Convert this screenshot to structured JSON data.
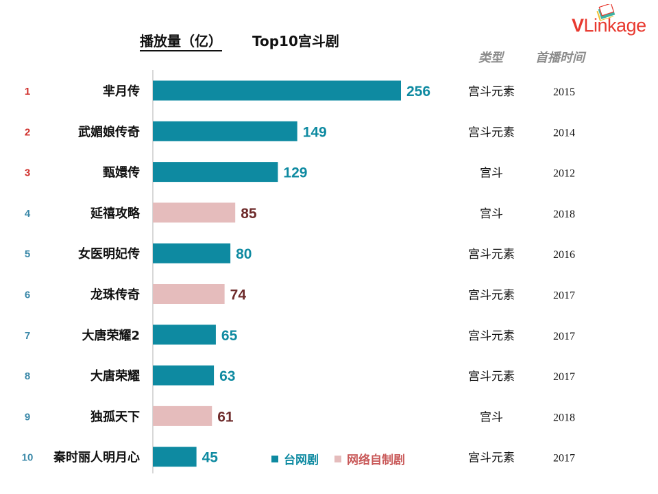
{
  "title": {
    "metric": "播放量（亿）",
    "name": "Top10宫斗剧"
  },
  "logo": {
    "brand_v": "V",
    "brand_rest": "Linkage"
  },
  "columns": {
    "type": "类型",
    "year": "首播时间"
  },
  "colors": {
    "tv": "#0e8aa1",
    "web": "#e5bcbc",
    "tv_label": "#0e8aa1",
    "web_label": "#6e2b2b",
    "rank_top": "#d0302c",
    "rank_other": "#3a88a8",
    "axis": "#bdbdbd"
  },
  "legend": {
    "tv": "台网剧",
    "web": "网络自制剧"
  },
  "chart_data": {
    "type": "bar",
    "orientation": "horizontal",
    "title": "播放量（亿） Top10宫斗剧",
    "xlim": [
      0,
      256
    ],
    "rows": [
      {
        "rank": "1",
        "name": "芈月传",
        "value": 256,
        "category": "tv",
        "type": "宫斗元素",
        "year": "2015"
      },
      {
        "rank": "2",
        "name": "武媚娘传奇",
        "value": 149,
        "category": "tv",
        "type": "宫斗元素",
        "year": "2014"
      },
      {
        "rank": "3",
        "name": "甄嬛传",
        "value": 129,
        "category": "tv",
        "type": "宫斗",
        "year": "2012"
      },
      {
        "rank": "4",
        "name": "延禧攻略",
        "value": 85,
        "category": "web",
        "type": "宫斗",
        "year": "2018"
      },
      {
        "rank": "5",
        "name": "女医明妃传",
        "value": 80,
        "category": "tv",
        "type": "宫斗元素",
        "year": "2016"
      },
      {
        "rank": "6",
        "name": "龙珠传奇",
        "value": 74,
        "category": "web",
        "type": "宫斗元素",
        "year": "2017"
      },
      {
        "rank": "7",
        "name": "大唐荣耀2",
        "value": 65,
        "category": "tv",
        "type": "宫斗元素",
        "year": "2017"
      },
      {
        "rank": "8",
        "name": "大唐荣耀",
        "value": 63,
        "category": "tv",
        "type": "宫斗元素",
        "year": "2017"
      },
      {
        "rank": "9",
        "name": "独孤天下",
        "value": 61,
        "category": "web",
        "type": "宫斗",
        "year": "2018"
      },
      {
        "rank": "10",
        "name": "秦时丽人明月心",
        "value": 45,
        "category": "tv",
        "type": "宫斗元素",
        "year": "2017"
      }
    ]
  }
}
